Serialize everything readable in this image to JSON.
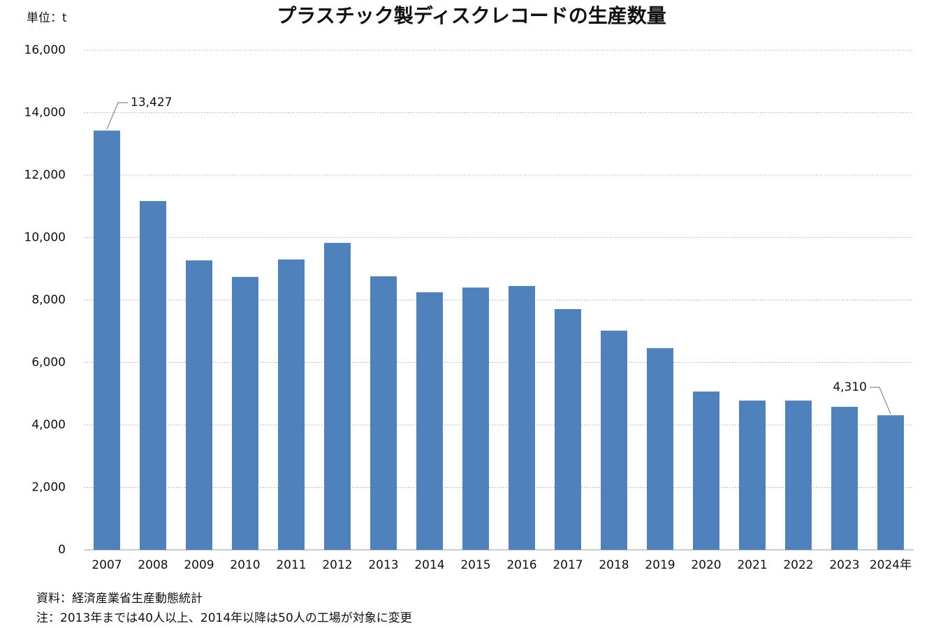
{
  "chart_data": {
    "type": "bar",
    "title": "プラスチック製ディスクレコードの生産数量",
    "unit": "単位：t",
    "categories": [
      "2007",
      "2008",
      "2009",
      "2010",
      "2011",
      "2012",
      "2013",
      "2014",
      "2015",
      "2016",
      "2017",
      "2018",
      "2019",
      "2020",
      "2021",
      "2022",
      "2023",
      "2024年"
    ],
    "values": [
      13427,
      11170,
      9270,
      8740,
      9300,
      9830,
      8760,
      8250,
      8400,
      8450,
      7710,
      7020,
      6460,
      5070,
      4780,
      4780,
      4580,
      4310
    ],
    "value_labels": [
      "13,427",
      null,
      null,
      null,
      null,
      null,
      null,
      null,
      null,
      null,
      null,
      null,
      null,
      null,
      null,
      null,
      null,
      "4,310"
    ],
    "color": "#4f81bd",
    "ylim": [
      0,
      16000
    ],
    "yticks": [
      0,
      {
        "value": 2000,
        "label": "2,000"
      },
      {
        "value": 4000,
        "label": "4,000"
      },
      {
        "value": 6000,
        "label": "6,000"
      },
      {
        "value": 8000,
        "label": "8,000"
      },
      {
        "value": 10000,
        "label": "10,000"
      },
      {
        "value": 12000,
        "label": "12,000"
      },
      {
        "value": 14000,
        "label": "14,000"
      },
      {
        "value": 16000,
        "label": "16,000"
      }
    ],
    "grid": true,
    "notes": [
      "資料：経済産業省生産動態統計",
      "注：2013年までは40人以上、2014年以降は50人の工場が対象に変更"
    ]
  }
}
